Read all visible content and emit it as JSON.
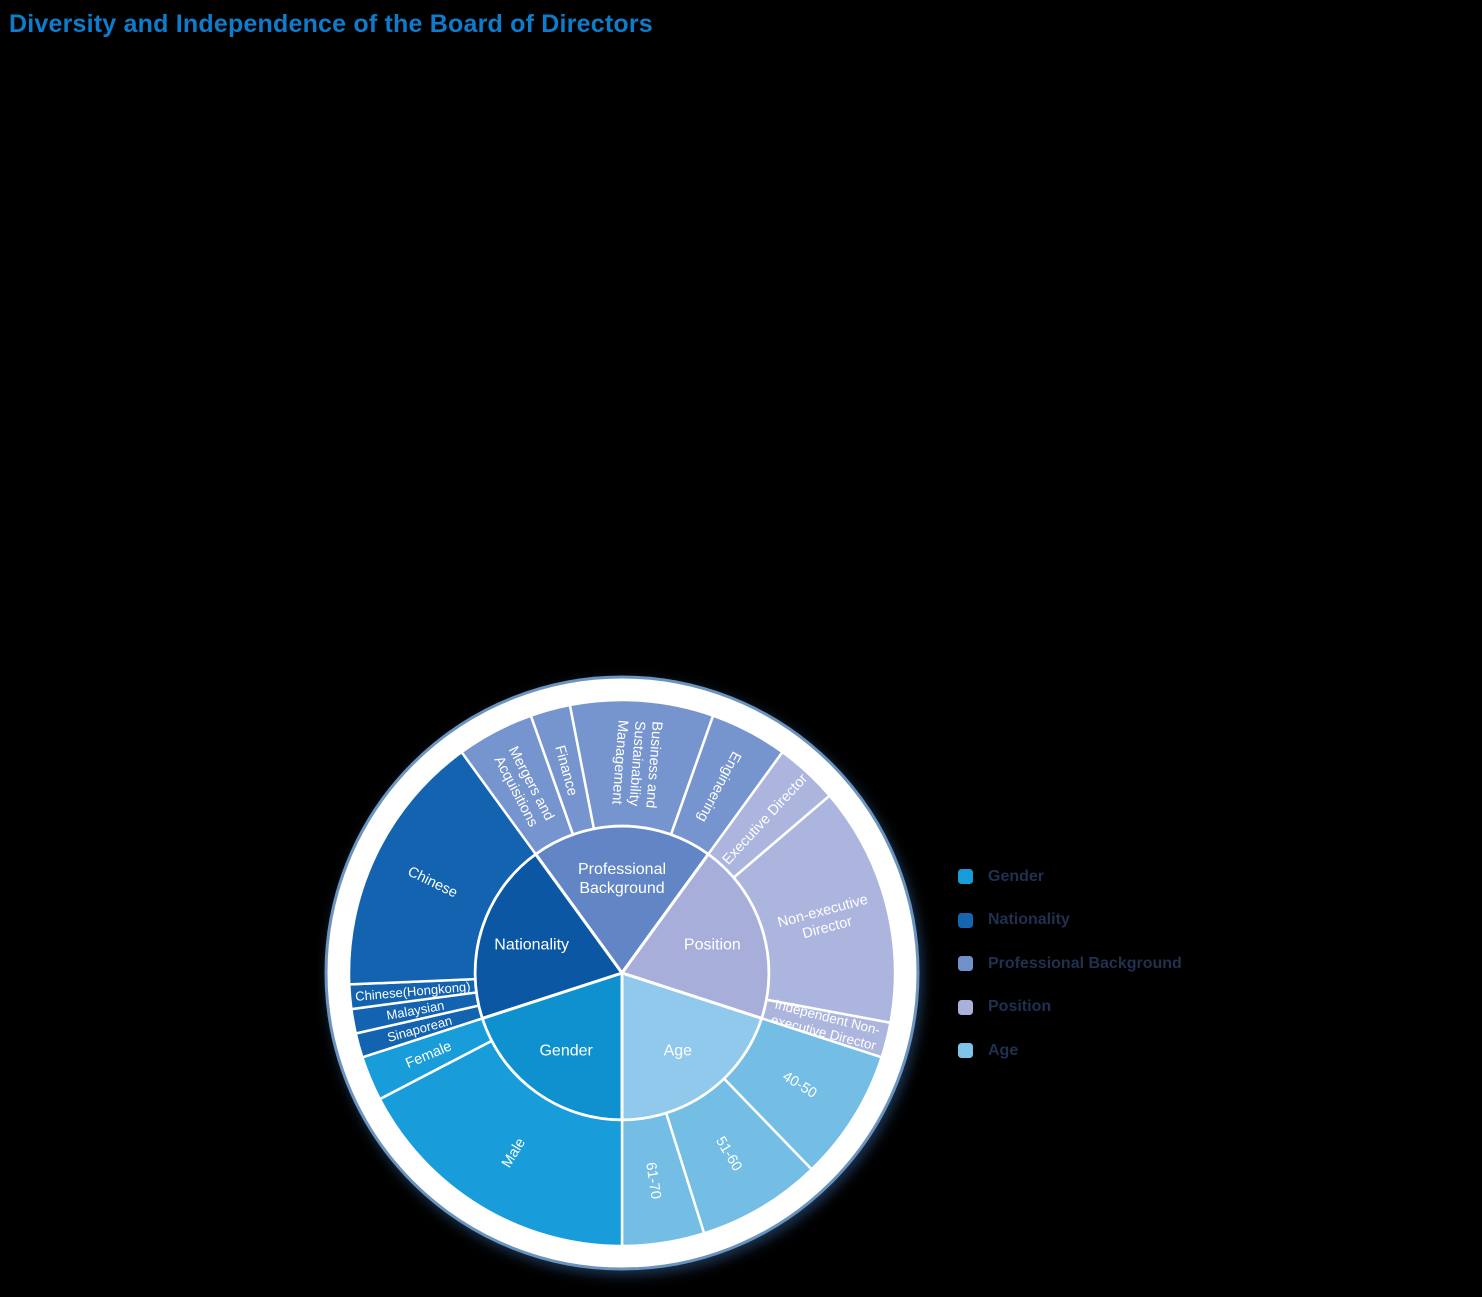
{
  "title": {
    "text": "Diversity and Independence of the Board of Directors",
    "color": "#0d7ccb"
  },
  "chart_data": {
    "type": "sunburst",
    "description": "Two-ring sunburst; 5 equal category wedges of 72 degrees each; child segment sizes given as angular span in degrees, clockwise from 12 o'clock",
    "rings": [
      "category",
      "subcategory"
    ],
    "categories": [
      {
        "name": "Professional Background",
        "label_lines": [
          "Professional",
          "Background"
        ],
        "start_deg": 324,
        "inner_color": "#6286c5",
        "child_color": "#7695ce",
        "legend_color": "#7090ca",
        "children": [
          {
            "label": "Mergers and Acquisitions",
            "lines": [
              "Mergers and",
              "Acquisitions"
            ],
            "span_deg": 16.5
          },
          {
            "label": "Finance",
            "lines": [
              "Finance"
            ],
            "span_deg": 8.5
          },
          {
            "label": "Business and Sustainability Management",
            "lines": [
              "Business and",
              "Sustainability",
              "Management"
            ],
            "span_deg": 30.5
          },
          {
            "label": "Engineering",
            "lines": [
              "Engineering"
            ],
            "span_deg": 16.5
          }
        ]
      },
      {
        "name": "Position",
        "label_lines": [
          "Position"
        ],
        "start_deg": 36,
        "inner_color": "#a6aed9",
        "child_color": "#acb5de",
        "legend_color": "#a8b1db",
        "children": [
          {
            "label": "Executive Director",
            "lines": [
              "Executive Director"
            ],
            "span_deg": 13.5
          },
          {
            "label": "Non-executive Director",
            "lines": [
              "Non-executive",
              "Director"
            ],
            "span_deg": 51
          },
          {
            "label": "Independent Non-executive Director",
            "lines": [
              "Independent Non-",
              "executive Director"
            ],
            "span_deg": 7.5,
            "font_size": 13.5
          }
        ]
      },
      {
        "name": "Age",
        "label_lines": [
          "Age"
        ],
        "start_deg": 108,
        "inner_color": "#91c9ec",
        "child_color": "#74bee5",
        "legend_color": "#7ec4e9",
        "children": [
          {
            "label": "40-50",
            "lines": [
              "40-50"
            ],
            "span_deg": 28
          },
          {
            "label": "51-60",
            "lines": [
              "51-60"
            ],
            "span_deg": 26.5
          },
          {
            "label": "61-70",
            "lines": [
              "61-70"
            ],
            "span_deg": 17.5
          }
        ]
      },
      {
        "name": "Gender",
        "label_lines": [
          "Gender"
        ],
        "start_deg": 180,
        "inner_color": "#0f90cf",
        "child_color": "#199dda",
        "legend_color": "#189cd9",
        "children": [
          {
            "label": "Male",
            "lines": [
              "Male"
            ],
            "span_deg": 62.5
          },
          {
            "label": "Female",
            "lines": [
              "Female"
            ],
            "span_deg": 9.5
          }
        ]
      },
      {
        "name": "Nationality",
        "label_lines": [
          "Nationality"
        ],
        "start_deg": 252,
        "inner_color": "#0b57a4",
        "child_color": "#1363b1",
        "legend_color": "#1565b0",
        "children": [
          {
            "label": "Sinaporean",
            "lines": [
              "Sinaporean"
            ],
            "span_deg": 5.2,
            "font_size": 13
          },
          {
            "label": "Malaysian",
            "lines": [
              "Malaysian"
            ],
            "span_deg": 5.2,
            "font_size": 13
          },
          {
            "label": "Chinese(Hongkong)",
            "lines": [
              "Chinese(Hongkong)"
            ],
            "span_deg": 5.2,
            "font_size": 13
          },
          {
            "label": "Chinese",
            "lines": [
              "Chinese"
            ],
            "span_deg": 56.4
          }
        ]
      }
    ],
    "legend": {
      "entries": [
        "Gender",
        "Nationality",
        "Professional Background",
        "Position",
        "Age"
      ],
      "text_color": "#20304f",
      "position": "right"
    },
    "style": {
      "label_text_color": "#ffffff",
      "segment_border_color": "#ffffff",
      "disc_fill": "#ffffff",
      "disc_edge_color": "#6a93bd",
      "background": "#000000"
    }
  }
}
